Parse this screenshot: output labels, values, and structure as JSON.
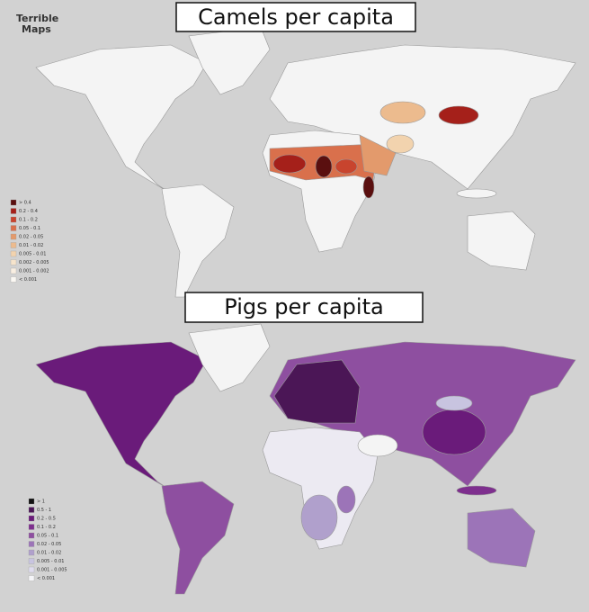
{
  "header": {
    "brand": [
      "Terrible",
      "Maps"
    ]
  },
  "maps": [
    {
      "title": "Camels per capita",
      "legend": [
        {
          "label": "> 0.4",
          "color": "#5a0f0f"
        },
        {
          "label": "0.2 - 0.4",
          "color": "#a5201a"
        },
        {
          "label": "0.1 - 0.2",
          "color": "#c8442e"
        },
        {
          "label": "0.05 - 0.1",
          "color": "#d9704c"
        },
        {
          "label": "0.02 - 0.05",
          "color": "#e39a6c"
        },
        {
          "label": "0.01 - 0.02",
          "color": "#ecbb8e"
        },
        {
          "label": "0.005 - 0.01",
          "color": "#f2d3ae"
        },
        {
          "label": "0.002 - 0.005",
          "color": "#f6e4cc"
        },
        {
          "label": "0.001 - 0.002",
          "color": "#f9efe2"
        },
        {
          "label": "< 0.001",
          "color": "#fbf8f3"
        }
      ]
    },
    {
      "title": "Pigs per capita",
      "legend": [
        {
          "label": "> 1",
          "color": "#111111"
        },
        {
          "label": "0.5 - 1",
          "color": "#4b1656"
        },
        {
          "label": "0.2 - 0.5",
          "color": "#6a1b7a"
        },
        {
          "label": "0.1 - 0.2",
          "color": "#7e2f8e"
        },
        {
          "label": "0.05 - 0.1",
          "color": "#8e4fa0"
        },
        {
          "label": "0.02 - 0.05",
          "color": "#9c74b8"
        },
        {
          "label": "0.01 - 0.02",
          "color": "#b0a0cc"
        },
        {
          "label": "0.005 - 0.01",
          "color": "#c8c4e0"
        },
        {
          "label": "0.001 - 0.005",
          "color": "#dfdcee"
        },
        {
          "label": "< 0.001",
          "color": "#f5f5f8"
        }
      ]
    }
  ]
}
